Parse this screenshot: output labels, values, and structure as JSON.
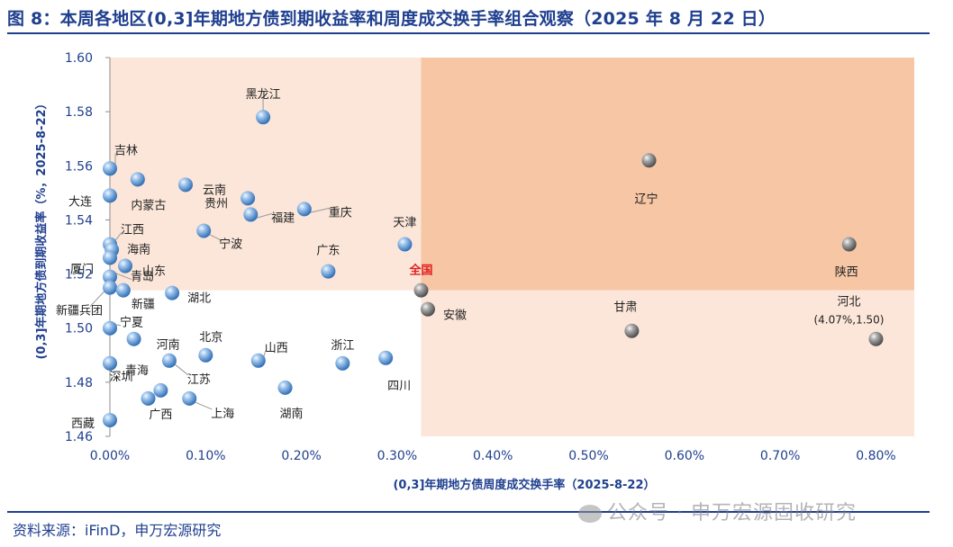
{
  "title": "图 8：本周各地区(0,3]年期地方债到期收益率和周度成交换手率组合观察（2025 年 8 月 22 日）",
  "source": "资料来源：iFinD，申万宏源研究",
  "watermark": "公众号 · 申万宏源固收研究",
  "watermark_icon": "wechat-icon",
  "colors": {
    "title": "#1f3f8f",
    "axis_text": "#1f3f8f",
    "quadrant_light": "#fbe6d9",
    "quadrant_dark": "#f6c6a5",
    "province_marker": "#6ea4dc",
    "province_marker_hi": "#7d7d7d",
    "national_label": "#e02020"
  },
  "chart_data": {
    "type": "scatter",
    "xlabel": "(0,3]年期地方债周度成交换手率（2025-8-22）",
    "ylabel": "(0,3]年期地方债到期收益率（%，2025-8-22）",
    "xlim": [
      0,
      0.84
    ],
    "ylim": [
      1.46,
      1.6
    ],
    "x_unit": "%",
    "xticks": [
      "0.00%",
      "0.10%",
      "0.20%",
      "0.30%",
      "0.40%",
      "0.50%",
      "0.60%",
      "0.70%",
      "0.80%"
    ],
    "yticks": [
      "1.46",
      "1.48",
      "1.50",
      "1.52",
      "1.54",
      "1.56",
      "1.58",
      "1.60"
    ],
    "national_average": {
      "x": 0.325,
      "y": 1.514
    },
    "points": [
      {
        "name": "黑龙江",
        "x": 0.16,
        "y": 1.578
      },
      {
        "name": "吉林",
        "x": 0.0,
        "y": 1.559
      },
      {
        "name": "大连",
        "x": 0.0,
        "y": 1.549
      },
      {
        "name": "内蒙古",
        "x": 0.029,
        "y": 1.555
      },
      {
        "name": "云南",
        "x": 0.079,
        "y": 1.553
      },
      {
        "name": "贵州",
        "x": 0.144,
        "y": 1.548
      },
      {
        "name": "福建",
        "x": 0.147,
        "y": 1.542
      },
      {
        "name": "重庆",
        "x": 0.203,
        "y": 1.544
      },
      {
        "name": "宁波",
        "x": 0.098,
        "y": 1.536
      },
      {
        "name": "江西",
        "x": 0.0,
        "y": 1.531
      },
      {
        "name": "海南",
        "x": 0.002,
        "y": 1.529
      },
      {
        "name": "厦门",
        "x": 0.0,
        "y": 1.526
      },
      {
        "name": "山东",
        "x": 0.016,
        "y": 1.523
      },
      {
        "name": "青岛",
        "x": 0.0,
        "y": 1.519
      },
      {
        "name": "新疆兵团",
        "x": 0.0,
        "y": 1.515
      },
      {
        "name": "新疆",
        "x": 0.014,
        "y": 1.514
      },
      {
        "name": "湖北",
        "x": 0.065,
        "y": 1.513
      },
      {
        "name": "广东",
        "x": 0.228,
        "y": 1.521
      },
      {
        "name": "天津",
        "x": 0.308,
        "y": 1.531
      },
      {
        "name": "全国",
        "x": 0.325,
        "y": 1.514
      },
      {
        "name": "安徽",
        "x": 0.332,
        "y": 1.507
      },
      {
        "name": "辽宁",
        "x": 0.563,
        "y": 1.562
      },
      {
        "name": "陕西",
        "x": 0.772,
        "y": 1.531
      },
      {
        "name": "甘肃",
        "x": 0.545,
        "y": 1.499
      },
      {
        "name": "河北",
        "x": 0.8,
        "y": 1.496,
        "annotation": "(4.07%,1.50)"
      },
      {
        "name": "宁夏",
        "x": 0.0,
        "y": 1.5
      },
      {
        "name": "河南",
        "x": 0.025,
        "y": 1.496
      },
      {
        "name": "北京",
        "x": 0.1,
        "y": 1.49
      },
      {
        "name": "青海",
        "x": 0.0,
        "y": 1.487
      },
      {
        "name": "江苏",
        "x": 0.062,
        "y": 1.488
      },
      {
        "name": "山西",
        "x": 0.155,
        "y": 1.488
      },
      {
        "name": "浙江",
        "x": 0.243,
        "y": 1.487
      },
      {
        "name": "四川",
        "x": 0.288,
        "y": 1.489
      },
      {
        "name": "深圳",
        "x": 0.04,
        "y": 1.474
      },
      {
        "name": "广西",
        "x": 0.053,
        "y": 1.477
      },
      {
        "name": "上海",
        "x": 0.083,
        "y": 1.474
      },
      {
        "name": "湖南",
        "x": 0.183,
        "y": 1.478
      },
      {
        "name": "西藏",
        "x": 0.0,
        "y": 1.466
      }
    ]
  }
}
